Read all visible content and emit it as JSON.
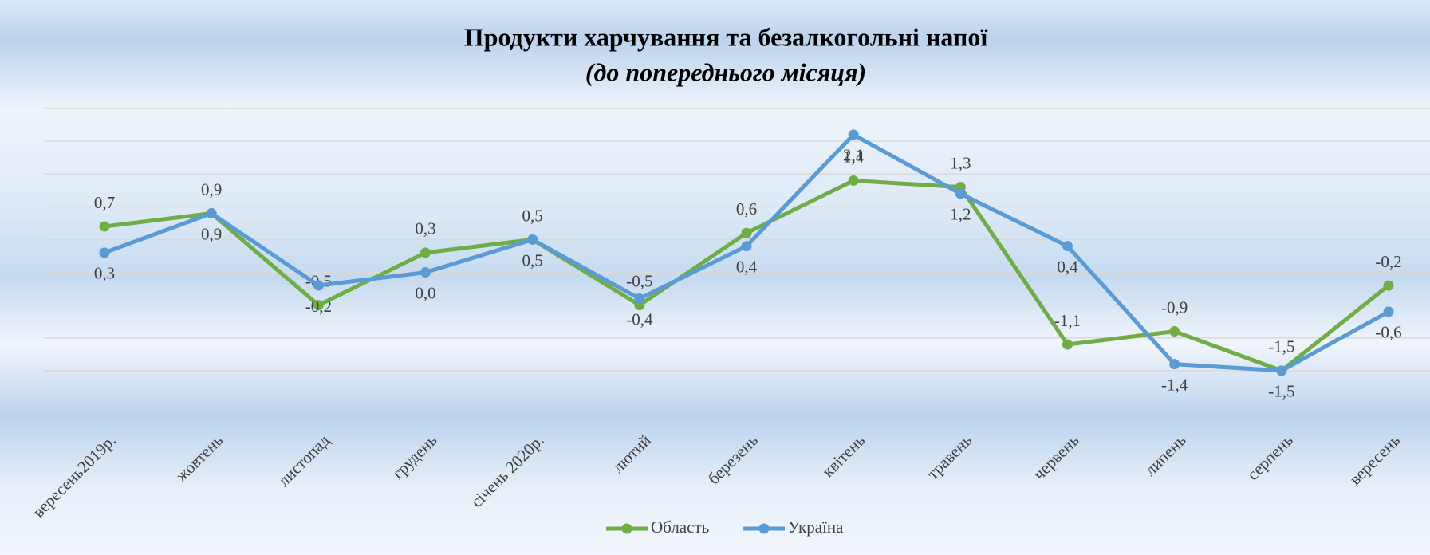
{
  "chart_data": {
    "type": "line",
    "title": "Продукти харчування та безалкогольні напої",
    "subtitle": "(до попереднього місяця)",
    "categories": [
      "вересень2019р.",
      "жовтень",
      "листопад",
      "грудень",
      "січень 2020р.",
      "лютий",
      "березень",
      "квітень",
      "травень",
      "червень",
      "липень",
      "серпень",
      "вересень"
    ],
    "series": [
      {
        "name": "Область",
        "color": "#70ad47",
        "values": [
          0.7,
          0.9,
          -0.5,
          0.3,
          0.5,
          -0.5,
          0.6,
          1.4,
          1.3,
          -1.1,
          -0.9,
          -1.5,
          -0.2
        ],
        "value_labels": [
          "0,7",
          "0,9",
          "-0,5",
          "0,3",
          "0,5",
          "-0,5",
          "0,6",
          "1,4",
          "1,3",
          "-1,1",
          "-0,9",
          "-1,5",
          "-0,2"
        ]
      },
      {
        "name": "Україна",
        "color": "#5b9bd5",
        "values": [
          0.3,
          0.9,
          -0.2,
          0.0,
          0.5,
          -0.4,
          0.4,
          2.1,
          1.2,
          0.4,
          -1.4,
          -1.5,
          -0.6
        ],
        "value_labels": [
          "0,3",
          "0,9",
          "-0,2",
          "0,0",
          "0,5",
          "-0,4",
          "0,4",
          "2,1",
          "1,2",
          "0,4",
          "-1,4",
          "-1,5",
          "-0,6"
        ]
      }
    ],
    "ylim": [
      -2,
      2.5
    ],
    "yticks": [
      -2,
      -1.5,
      -1,
      -0.5,
      0,
      0.5,
      1,
      1.5,
      2,
      2.5
    ],
    "grid": true,
    "legend": "bottom"
  }
}
